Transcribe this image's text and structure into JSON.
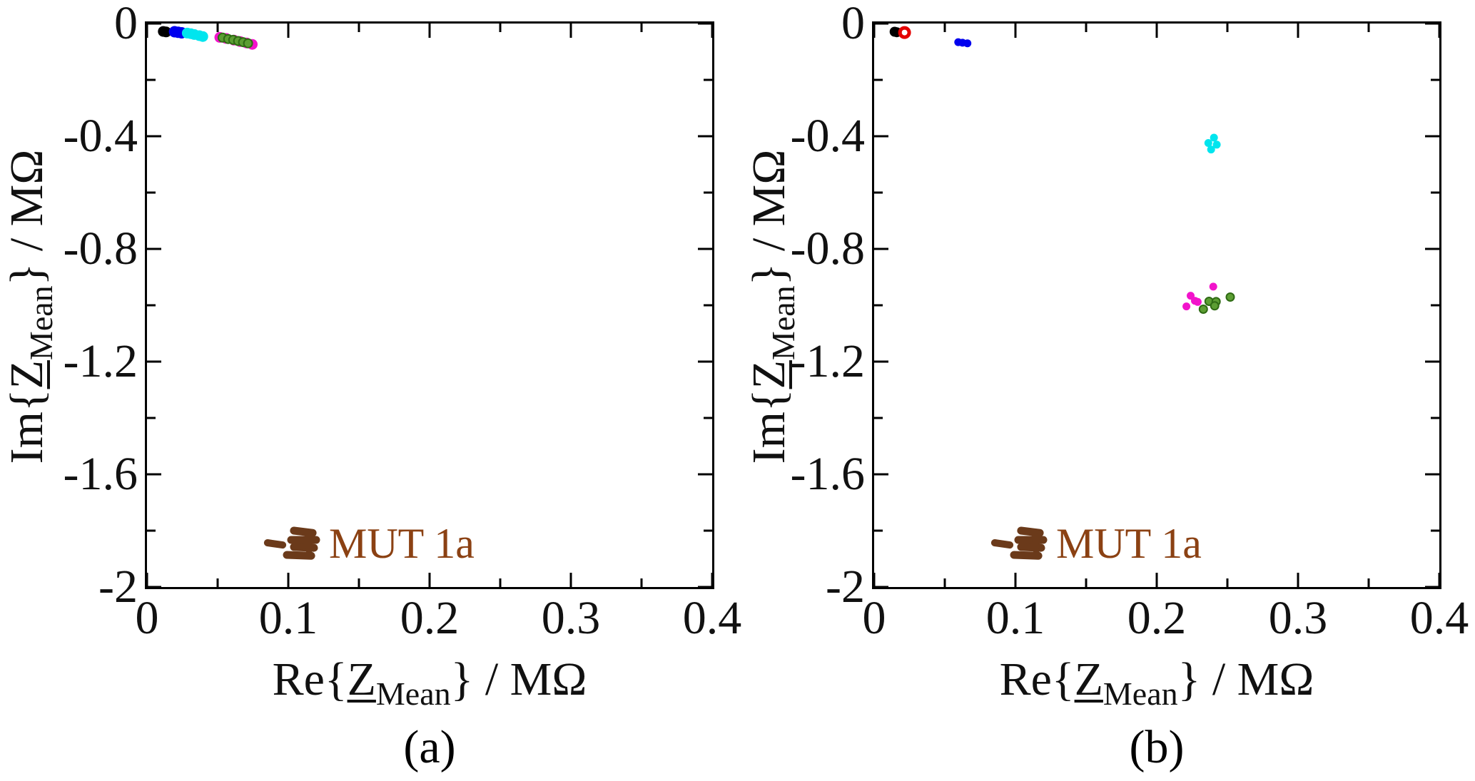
{
  "figure": {
    "background": "#FFFFFF",
    "axis_color": "#000000",
    "text_color": "#111111"
  },
  "axis_labels": {
    "x": {
      "prefix": "Re{",
      "z": "Z",
      "sub": "Mean",
      "suffix": "} / MΩ"
    },
    "y": {
      "prefix": "Im{",
      "z": "Z",
      "sub": "Mean",
      "suffix": "} / MΩ"
    }
  },
  "chart_data": [
    {
      "type": "scatter",
      "caption": "(a)",
      "xlabel": "Re{Z_Mean} / MΩ",
      "ylabel": "Im{Z_Mean} / MΩ",
      "xlim": [
        0,
        0.4
      ],
      "ylim": [
        -2,
        0
      ],
      "grid": false,
      "xticks": [
        {
          "v": 0,
          "t": "0"
        },
        {
          "v": 0.1,
          "t": "0.1"
        },
        {
          "v": 0.2,
          "t": "0.2"
        },
        {
          "v": 0.3,
          "t": "0.3"
        },
        {
          "v": 0.4,
          "t": "0.4"
        }
      ],
      "yticks": [
        {
          "v": 0,
          "t": "0"
        },
        {
          "v": -0.4,
          "t": "-0.4"
        },
        {
          "v": -0.8,
          "t": "-0.8"
        },
        {
          "v": -1.2,
          "t": "-1.2"
        },
        {
          "v": -1.6,
          "t": "-1.6"
        },
        {
          "v": -2,
          "t": "-2"
        }
      ],
      "minor_xticks": [
        0.05,
        0.15,
        0.25,
        0.35
      ],
      "minor_yticks": [
        -0.2,
        -0.6,
        -1.0,
        -1.4,
        -1.8
      ],
      "series": [
        {
          "name": "magenta-cluster",
          "color": "#F213CB",
          "size": 15,
          "points": [
            [
              0.0515,
              -0.049
            ],
            [
              0.056,
              -0.053
            ],
            [
              0.0615,
              -0.059
            ],
            [
              0.066,
              -0.064
            ],
            [
              0.0705,
              -0.069
            ],
            [
              0.0745,
              -0.074
            ]
          ]
        },
        {
          "name": "green-cluster",
          "color": "#5C9E33",
          "edge": "#2F6B14",
          "edge_width": 2,
          "size": 12,
          "points": [
            [
              0.0535,
              -0.05
            ],
            [
              0.0575,
              -0.055
            ],
            [
              0.061,
              -0.058
            ],
            [
              0.0645,
              -0.062
            ],
            [
              0.068,
              -0.066
            ],
            [
              0.0715,
              -0.07
            ]
          ]
        },
        {
          "name": "black-cluster",
          "color": "#000000",
          "size": 15,
          "points": [
            [
              0.0115,
              -0.028
            ],
            [
              0.0135,
              -0.03
            ]
          ]
        },
        {
          "name": "blue-cluster",
          "color": "#0000EE",
          "size": 16,
          "points": [
            [
              0.0195,
              -0.029
            ],
            [
              0.022,
              -0.031
            ],
            [
              0.0245,
              -0.033
            ]
          ]
        },
        {
          "name": "cyan-cluster",
          "color": "#00E5EE",
          "size": 15,
          "points": [
            [
              0.0285,
              -0.034
            ],
            [
              0.031,
              -0.036
            ],
            [
              0.0335,
              -0.039
            ],
            [
              0.037,
              -0.043
            ],
            [
              0.0395,
              -0.046
            ]
          ]
        }
      ],
      "scribble": {
        "name": "mut1a-cluster",
        "color": "#6B3A1A",
        "segments": [
          {
            "x1": 0.0853,
            "y1": -1.843,
            "x2": 0.096,
            "y2": -1.851,
            "w": 10
          },
          {
            "x1": 0.104,
            "y1": -1.8,
            "x2": 0.1172,
            "y2": -1.808,
            "w": 11
          },
          {
            "x1": 0.102,
            "y1": -1.833,
            "x2": 0.1197,
            "y2": -1.833,
            "w": 11
          },
          {
            "x1": 0.104,
            "y1": -1.858,
            "x2": 0.1182,
            "y2": -1.861,
            "w": 11
          },
          {
            "x1": 0.099,
            "y1": -1.886,
            "x2": 0.1162,
            "y2": -1.889,
            "w": 11
          },
          {
            "x1": 0.1135,
            "y1": -1.806,
            "x2": 0.1148,
            "y2": -1.882,
            "w": 8
          }
        ]
      },
      "annotation": {
        "text": "MUT 1a",
        "x": 0.129,
        "y": -1.845,
        "color": "#8B4113"
      }
    },
    {
      "type": "scatter",
      "caption": "(b)",
      "xlabel": "Re{Z_Mean} / MΩ",
      "ylabel": "Im{Z_Mean} / MΩ",
      "xlim": [
        0,
        0.4
      ],
      "ylim": [
        -2,
        0
      ],
      "grid": false,
      "xticks": [
        {
          "v": 0,
          "t": "0"
        },
        {
          "v": 0.1,
          "t": "0.1"
        },
        {
          "v": 0.2,
          "t": "0.2"
        },
        {
          "v": 0.3,
          "t": "0.3"
        },
        {
          "v": 0.4,
          "t": "0.4"
        }
      ],
      "yticks": [
        {
          "v": 0,
          "t": "0"
        },
        {
          "v": -0.4,
          "t": "-0.4"
        },
        {
          "v": -0.8,
          "t": "-0.8"
        },
        {
          "v": -1.2,
          "t": "-1.2"
        },
        {
          "v": -1.6,
          "t": "-1.6"
        },
        {
          "v": -2,
          "t": "-2"
        }
      ],
      "minor_xticks": [
        0.05,
        0.15,
        0.25,
        0.35
      ],
      "minor_yticks": [
        -0.2,
        -0.6,
        -1.0,
        -1.4,
        -1.8
      ],
      "series": [
        {
          "name": "black-cluster",
          "color": "#000000",
          "size": 14,
          "points": [
            [
              0.0145,
              -0.029
            ],
            [
              0.016,
              -0.031
            ]
          ]
        },
        {
          "name": "red-ring-marker",
          "color": "none",
          "edge": "#E40000",
          "edge_width": 5,
          "size": 13,
          "points": [
            [
              0.0215,
              -0.032
            ]
          ]
        },
        {
          "name": "blue-cluster",
          "color": "#0000EE",
          "size": 11,
          "points": [
            [
              0.0595,
              -0.066
            ],
            [
              0.0625,
              -0.068
            ],
            [
              0.066,
              -0.07
            ]
          ]
        },
        {
          "name": "cyan-cluster",
          "color": "#00E5EE",
          "size": 11,
          "points": [
            [
              0.2405,
              -0.405
            ],
            [
              0.2365,
              -0.424
            ],
            [
              0.2425,
              -0.43
            ],
            [
              0.2385,
              -0.447
            ]
          ]
        },
        {
          "name": "magenta-cluster",
          "color": "#F213CB",
          "size": 11,
          "points": [
            [
              0.24,
              -0.934
            ],
            [
              0.224,
              -0.966
            ],
            [
              0.227,
              -0.984
            ],
            [
              0.229,
              -0.988
            ],
            [
              0.221,
              -1.004
            ]
          ]
        },
        {
          "name": "green-cluster",
          "color": "#5C9E33",
          "edge": "#2F6B14",
          "edge_width": 2,
          "size": 11,
          "points": [
            [
              0.252,
              -0.971
            ],
            [
              0.237,
              -0.986
            ],
            [
              0.242,
              -0.987
            ],
            [
              0.241,
              -1.002
            ],
            [
              0.233,
              -1.014
            ]
          ]
        }
      ],
      "scribble": {
        "name": "mut1a-cluster",
        "color": "#6B3A1A",
        "segments": [
          {
            "x1": 0.0853,
            "y1": -1.843,
            "x2": 0.096,
            "y2": -1.851,
            "w": 10
          },
          {
            "x1": 0.104,
            "y1": -1.8,
            "x2": 0.1172,
            "y2": -1.808,
            "w": 11
          },
          {
            "x1": 0.102,
            "y1": -1.833,
            "x2": 0.1197,
            "y2": -1.833,
            "w": 11
          },
          {
            "x1": 0.104,
            "y1": -1.858,
            "x2": 0.1182,
            "y2": -1.861,
            "w": 11
          },
          {
            "x1": 0.099,
            "y1": -1.886,
            "x2": 0.1162,
            "y2": -1.889,
            "w": 11
          },
          {
            "x1": 0.1135,
            "y1": -1.806,
            "x2": 0.1148,
            "y2": -1.882,
            "w": 8
          }
        ]
      },
      "annotation": {
        "text": "MUT 1a",
        "x": 0.129,
        "y": -1.845,
        "color": "#8B4113"
      }
    }
  ]
}
